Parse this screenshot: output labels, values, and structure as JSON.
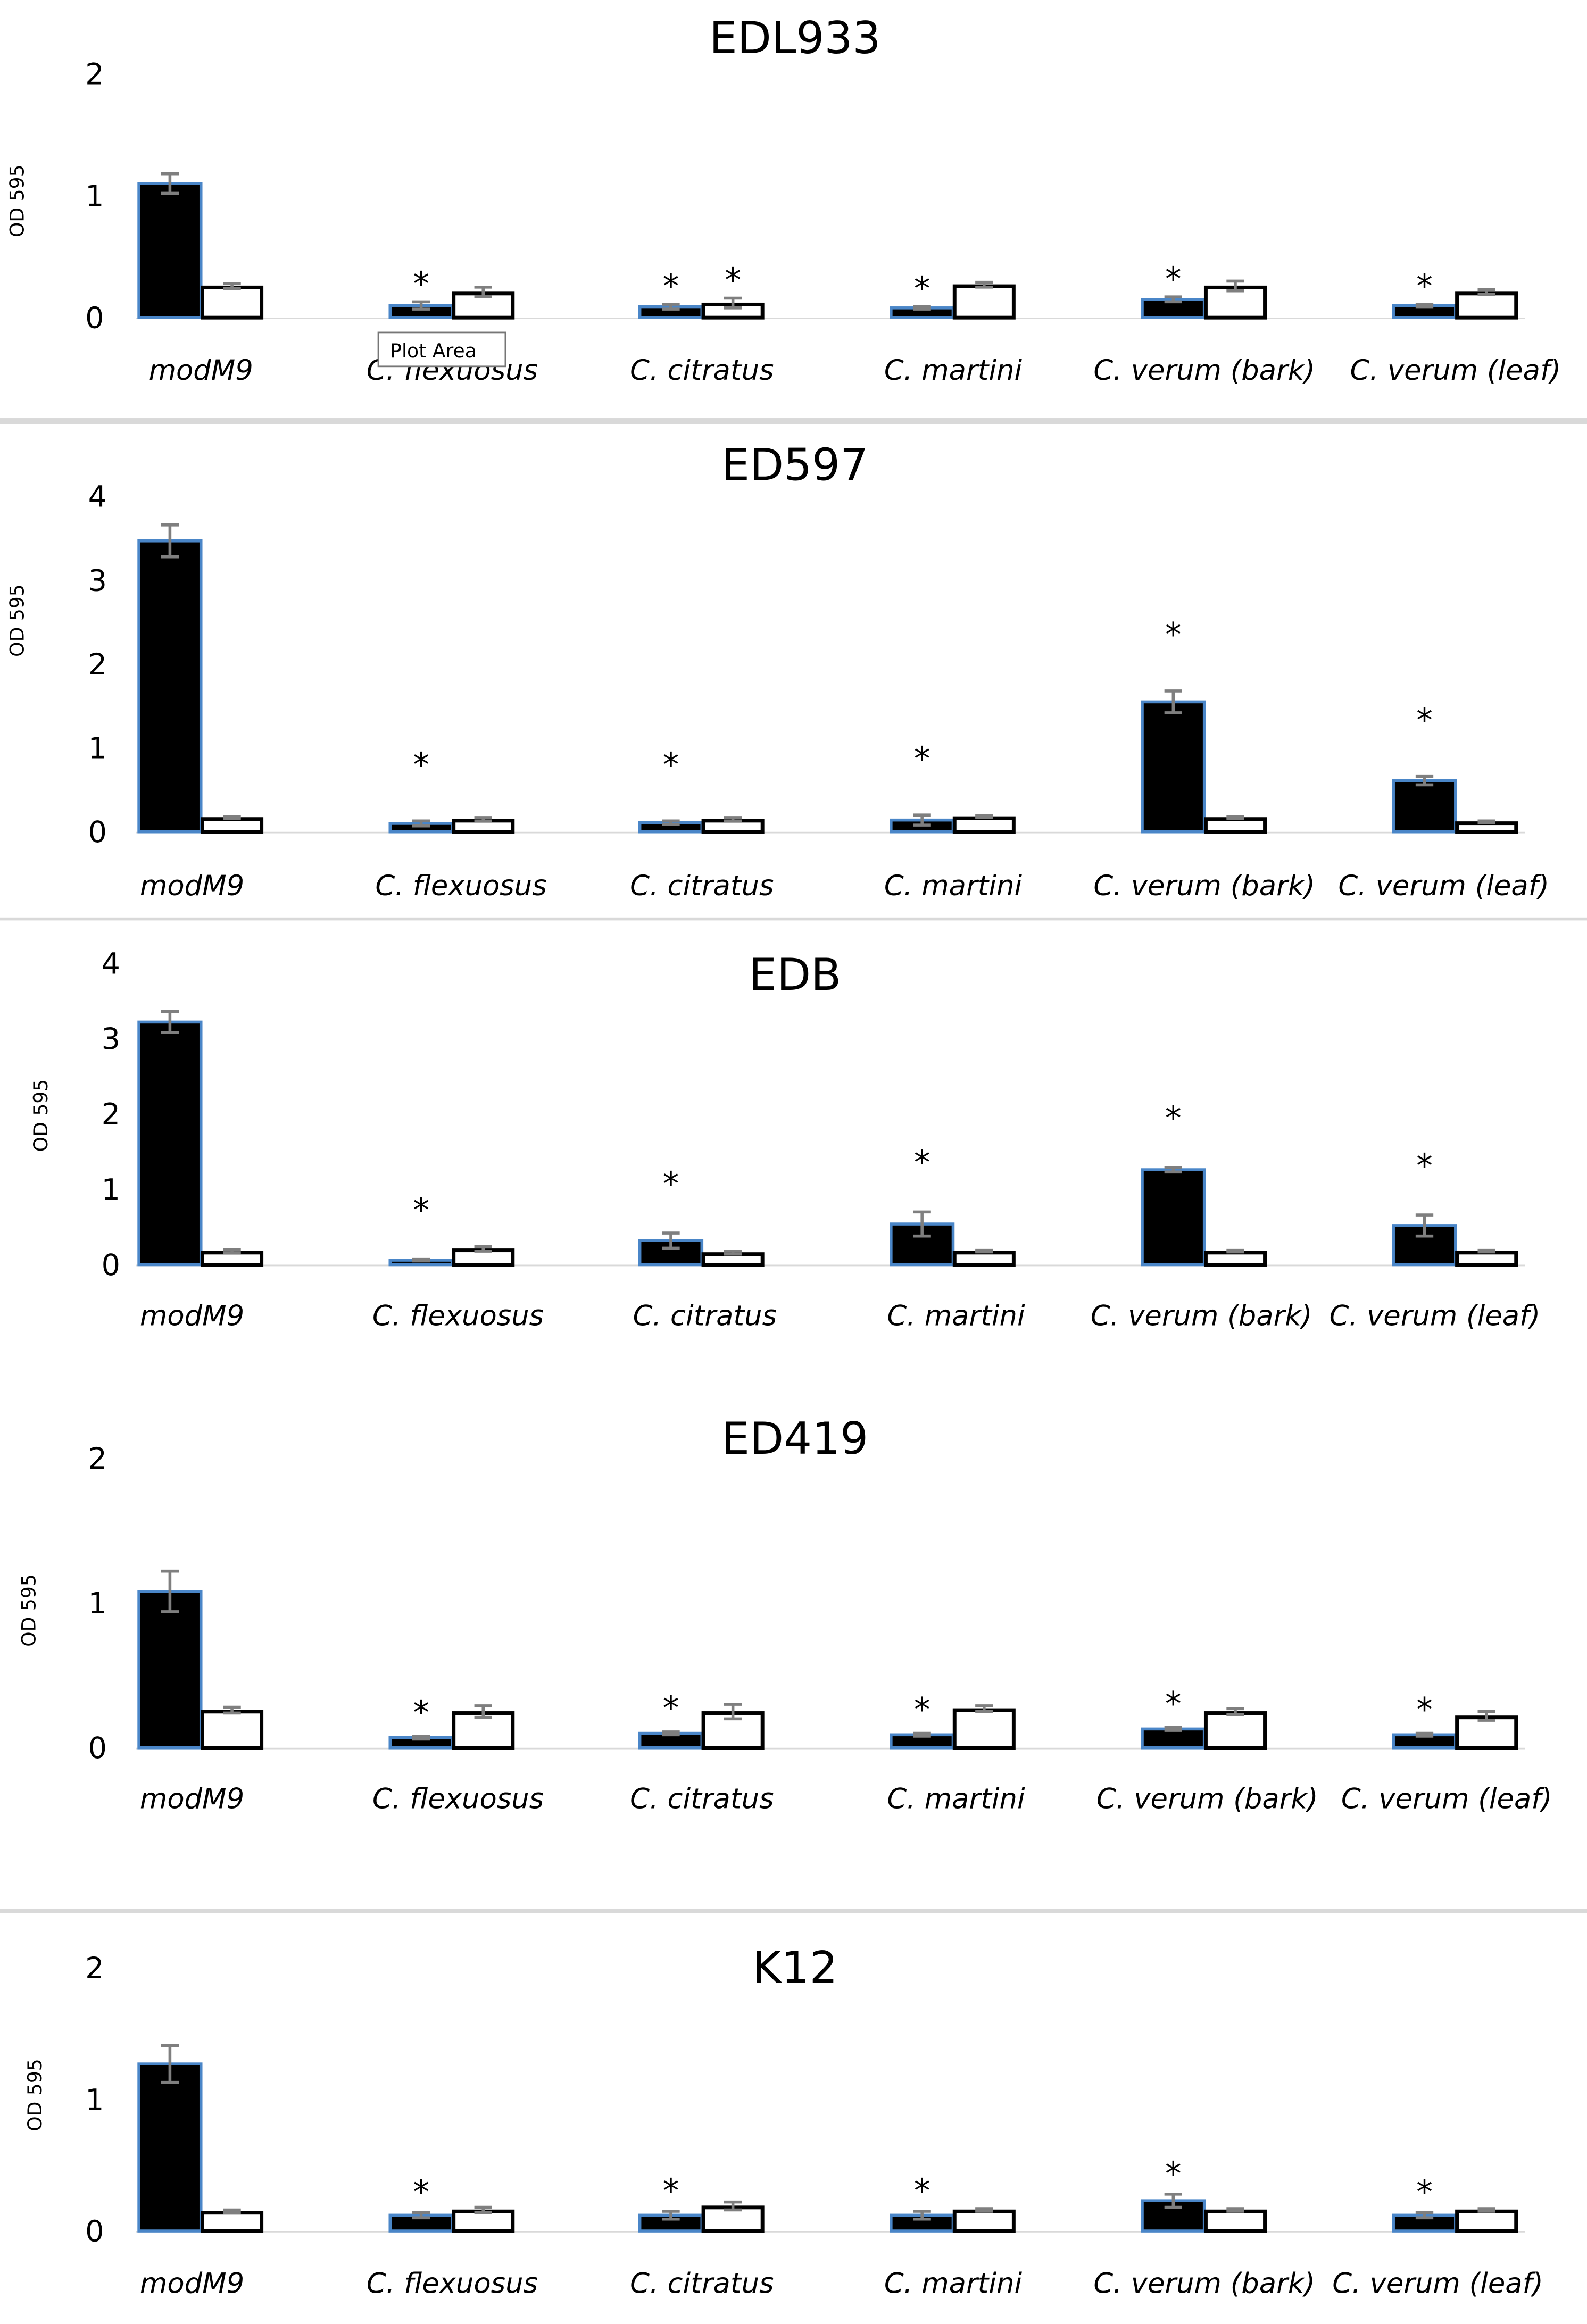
{
  "chart_data": [
    {
      "type": "bar",
      "title": "EDL933",
      "ylabel": "OD 595",
      "ylim": [
        0,
        2
      ],
      "yticks": [
        "0",
        "1",
        "2"
      ],
      "categories": [
        "modM9",
        "C. flexuosus",
        "C. citratus",
        "C. martini",
        "C. verum (bark)",
        "C. verum (leaf)"
      ],
      "series": [
        {
          "name": "black",
          "values": [
            1.1,
            0.1,
            0.09,
            0.08,
            0.15,
            0.1
          ],
          "errors": [
            0.08,
            0.03,
            0.02,
            0.01,
            0.02,
            0.01
          ]
        },
        {
          "name": "white",
          "values": [
            0.26,
            0.21,
            0.12,
            0.27,
            0.26,
            0.21
          ],
          "errors": [
            0.02,
            0.04,
            0.04,
            0.02,
            0.04,
            0.02
          ]
        }
      ],
      "significance": [
        {
          "series": 0,
          "categories": [
            1,
            2,
            3,
            4,
            5
          ],
          "label": "*"
        },
        {
          "series": 1,
          "categories": [
            2
          ],
          "label": "*"
        }
      ]
    },
    {
      "type": "bar",
      "title": "ED597",
      "ylabel": "OD 595",
      "ylim": [
        0,
        4
      ],
      "yticks": [
        "0",
        "1",
        "2",
        "3",
        "4"
      ],
      "categories": [
        "modM9",
        "C. flexuosus",
        "C. citratus",
        "C. martini",
        "C. verum (bark)",
        "C. verum (leaf)"
      ],
      "series": [
        {
          "name": "black",
          "values": [
            3.47,
            0.1,
            0.11,
            0.14,
            1.55,
            0.61
          ],
          "errors": [
            0.19,
            0.03,
            0.02,
            0.06,
            0.13,
            0.05
          ]
        },
        {
          "name": "white",
          "values": [
            0.17,
            0.15,
            0.15,
            0.18,
            0.17,
            0.12
          ],
          "errors": [
            0.01,
            0.02,
            0.02,
            0.01,
            0.01,
            0.01
          ]
        }
      ],
      "significance": [
        {
          "series": 0,
          "categories": [
            1,
            2,
            3,
            4,
            5
          ],
          "label": "*"
        }
      ]
    },
    {
      "type": "bar",
      "title": "EDB",
      "ylabel": "OD 595",
      "ylim": [
        0,
        4
      ],
      "yticks": [
        "0",
        "1",
        "2",
        "3",
        "4"
      ],
      "categories": [
        "modM9",
        "C. flexuosus",
        "C. citratus",
        "C. martini",
        "C. verum (bark)",
        "C. verum (leaf)"
      ],
      "series": [
        {
          "name": "black",
          "values": [
            3.22,
            0.06,
            0.32,
            0.54,
            1.26,
            0.52
          ],
          "errors": [
            0.14,
            0.01,
            0.1,
            0.16,
            0.03,
            0.14
          ]
        },
        {
          "name": "white",
          "values": [
            0.18,
            0.21,
            0.16,
            0.18,
            0.18,
            0.18
          ],
          "errors": [
            0.02,
            0.03,
            0.02,
            0.01,
            0.01,
            0.01
          ]
        }
      ],
      "significance": [
        {
          "series": 0,
          "categories": [
            1,
            2,
            3,
            4,
            5
          ],
          "label": "*"
        }
      ]
    },
    {
      "type": "bar",
      "title": "ED419",
      "ylabel": "OD 595",
      "ylim": [
        0,
        2
      ],
      "yticks": [
        "0",
        "1",
        "2"
      ],
      "categories": [
        "modM9",
        "C. flexuosus",
        "C. citratus",
        "C. martini",
        "C. verum (bark)",
        "C. verum (leaf)"
      ],
      "series": [
        {
          "name": "black",
          "values": [
            1.08,
            0.07,
            0.1,
            0.09,
            0.13,
            0.09
          ],
          "errors": [
            0.14,
            0.01,
            0.01,
            0.01,
            0.01,
            0.01
          ]
        },
        {
          "name": "white",
          "values": [
            0.26,
            0.25,
            0.25,
            0.27,
            0.25,
            0.22
          ],
          "errors": [
            0.02,
            0.04,
            0.05,
            0.02,
            0.02,
            0.03
          ]
        }
      ],
      "significance": [
        {
          "series": 0,
          "categories": [
            1,
            2,
            3,
            4,
            5
          ],
          "label": "*"
        }
      ]
    },
    {
      "type": "bar",
      "title": "K12",
      "ylabel": "OD 595",
      "ylim": [
        0,
        2
      ],
      "yticks": [
        "0",
        "1",
        "2"
      ],
      "categories": [
        "modM9",
        "C. flexuosus",
        "C. citratus",
        "C. martini",
        "C. verum (bark)",
        "C. verum (leaf)"
      ],
      "series": [
        {
          "name": "black",
          "values": [
            1.27,
            0.12,
            0.12,
            0.12,
            0.23,
            0.12
          ],
          "errors": [
            0.14,
            0.02,
            0.03,
            0.03,
            0.05,
            0.02
          ]
        },
        {
          "name": "white",
          "values": [
            0.15,
            0.16,
            0.19,
            0.16,
            0.16,
            0.16
          ],
          "errors": [
            0.01,
            0.02,
            0.03,
            0.01,
            0.01,
            0.01
          ]
        }
      ],
      "significance": [
        {
          "series": 0,
          "categories": [
            1,
            2,
            3,
            4,
            5
          ],
          "label": "*"
        }
      ]
    }
  ],
  "tooltip": {
    "text": "Plot Area"
  },
  "colors": {
    "bar_black": "#000000",
    "bar_black_outline": "#4a86c8",
    "bar_white": "#ffffff",
    "error_bar": "#7f7f7f",
    "separator": "#d9d9d9"
  }
}
